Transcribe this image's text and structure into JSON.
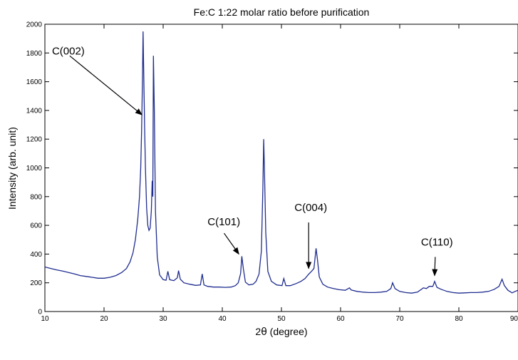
{
  "chart_data": {
    "type": "line",
    "title": "Fe:C 1:22 molar ratio before purification",
    "xlabel_main": "2",
    "xlabel_symbol": "θ",
    "xlabel_rest": " (degree)",
    "ylabel": "Intensity (arb. unit)",
    "xlim": [
      10,
      90
    ],
    "ylim": [
      0,
      2000
    ],
    "xticks": [
      10,
      20,
      30,
      40,
      50,
      60,
      70,
      80,
      90
    ],
    "yticks": [
      0,
      200,
      400,
      600,
      800,
      1000,
      1200,
      1400,
      1600,
      1800,
      2000
    ],
    "grid": false,
    "line_color": "#1f2d8f",
    "series": [
      {
        "points": [
          [
            10,
            310
          ],
          [
            11,
            300
          ],
          [
            12,
            290
          ],
          [
            13,
            282
          ],
          [
            14,
            272
          ],
          [
            15,
            262
          ],
          [
            16,
            250
          ],
          [
            17,
            244
          ],
          [
            18,
            238
          ],
          [
            19,
            232
          ],
          [
            20,
            232
          ],
          [
            21,
            238
          ],
          [
            22,
            250
          ],
          [
            23,
            272
          ],
          [
            23.8,
            300
          ],
          [
            24.4,
            345
          ],
          [
            24.9,
            410
          ],
          [
            25.3,
            500
          ],
          [
            25.7,
            640
          ],
          [
            26,
            800
          ],
          [
            26.2,
            1000
          ],
          [
            26.35,
            1250
          ],
          [
            26.5,
            1600
          ],
          [
            26.6,
            1950
          ],
          [
            26.7,
            1700
          ],
          [
            26.85,
            1300
          ],
          [
            27,
            1000
          ],
          [
            27.2,
            720
          ],
          [
            27.4,
            600
          ],
          [
            27.6,
            565
          ],
          [
            27.8,
            580
          ],
          [
            28,
            700
          ],
          [
            28.15,
            910
          ],
          [
            28.25,
            800
          ],
          [
            28.35,
            1780
          ],
          [
            28.5,
            1400
          ],
          [
            28.7,
            700
          ],
          [
            29,
            380
          ],
          [
            29.4,
            255
          ],
          [
            30,
            222
          ],
          [
            30.5,
            218
          ],
          [
            30.8,
            280
          ],
          [
            31.1,
            222
          ],
          [
            31.8,
            215
          ],
          [
            32.4,
            235
          ],
          [
            32.6,
            285
          ],
          [
            32.9,
            225
          ],
          [
            33.5,
            200
          ],
          [
            34.5,
            190
          ],
          [
            35.5,
            182
          ],
          [
            36.3,
            185
          ],
          [
            36.6,
            262
          ],
          [
            36.9,
            185
          ],
          [
            37.5,
            175
          ],
          [
            38.5,
            170
          ],
          [
            39.5,
            170
          ],
          [
            40.5,
            168
          ],
          [
            41.5,
            170
          ],
          [
            42.2,
            180
          ],
          [
            42.7,
            200
          ],
          [
            43.1,
            265
          ],
          [
            43.3,
            385
          ],
          [
            43.55,
            300
          ],
          [
            43.9,
            205
          ],
          [
            44.5,
            185
          ],
          [
            45.2,
            190
          ],
          [
            45.7,
            210
          ],
          [
            46.2,
            260
          ],
          [
            46.6,
            420
          ],
          [
            46.85,
            850
          ],
          [
            47,
            1200
          ],
          [
            47.15,
            950
          ],
          [
            47.35,
            550
          ],
          [
            47.7,
            280
          ],
          [
            48.3,
            210
          ],
          [
            49.2,
            185
          ],
          [
            50.1,
            180
          ],
          [
            50.4,
            230
          ],
          [
            50.75,
            180
          ],
          [
            51.5,
            180
          ],
          [
            52.5,
            195
          ],
          [
            53.3,
            210
          ],
          [
            54,
            230
          ],
          [
            54.6,
            260
          ],
          [
            55.1,
            280
          ],
          [
            55.5,
            300
          ],
          [
            55.85,
            440
          ],
          [
            56.1,
            360
          ],
          [
            56.4,
            240
          ],
          [
            57,
            190
          ],
          [
            57.8,
            170
          ],
          [
            58.8,
            160
          ],
          [
            59.8,
            152
          ],
          [
            60.8,
            148
          ],
          [
            61.5,
            165
          ],
          [
            61.8,
            150
          ],
          [
            62.8,
            140
          ],
          [
            63.8,
            135
          ],
          [
            64.8,
            132
          ],
          [
            65.8,
            132
          ],
          [
            66.8,
            135
          ],
          [
            67.8,
            140
          ],
          [
            68.5,
            160
          ],
          [
            68.8,
            200
          ],
          [
            69.2,
            160
          ],
          [
            70,
            140
          ],
          [
            71,
            132
          ],
          [
            72,
            128
          ],
          [
            73,
            135
          ],
          [
            74,
            165
          ],
          [
            74.5,
            160
          ],
          [
            75,
            175
          ],
          [
            75.6,
            175
          ],
          [
            75.9,
            210
          ],
          [
            76.3,
            168
          ],
          [
            77,
            155
          ],
          [
            78,
            140
          ],
          [
            79,
            132
          ],
          [
            80,
            128
          ],
          [
            81,
            130
          ],
          [
            82,
            132
          ],
          [
            83,
            132
          ],
          [
            84,
            135
          ],
          [
            85,
            140
          ],
          [
            86,
            155
          ],
          [
            86.8,
            175
          ],
          [
            87.3,
            225
          ],
          [
            87.7,
            180
          ],
          [
            88.3,
            148
          ],
          [
            89,
            130
          ],
          [
            89.5,
            140
          ],
          [
            90,
            148
          ]
        ]
      }
    ],
    "annotations": [
      {
        "label": "C(002)",
        "arrow_from": [
          14.2,
          1780
        ],
        "arrow_to": [
          26.4,
          1370
        ],
        "text_at": [
          11.2,
          1790
        ]
      },
      {
        "label": "C(101)",
        "arrow_from": [
          40.3,
          545
        ],
        "arrow_to": [
          42.8,
          400
        ],
        "text_at": [
          37.5,
          600
        ]
      },
      {
        "label": "C(004)",
        "arrow_from": [
          54.6,
          620
        ],
        "arrow_to": [
          54.6,
          300
        ],
        "text_at": [
          52.2,
          700
        ]
      },
      {
        "label": "C(110)",
        "arrow_from": [
          76.0,
          380
        ],
        "arrow_to": [
          75.9,
          250
        ],
        "text_at": [
          73.6,
          460
        ]
      }
    ]
  }
}
